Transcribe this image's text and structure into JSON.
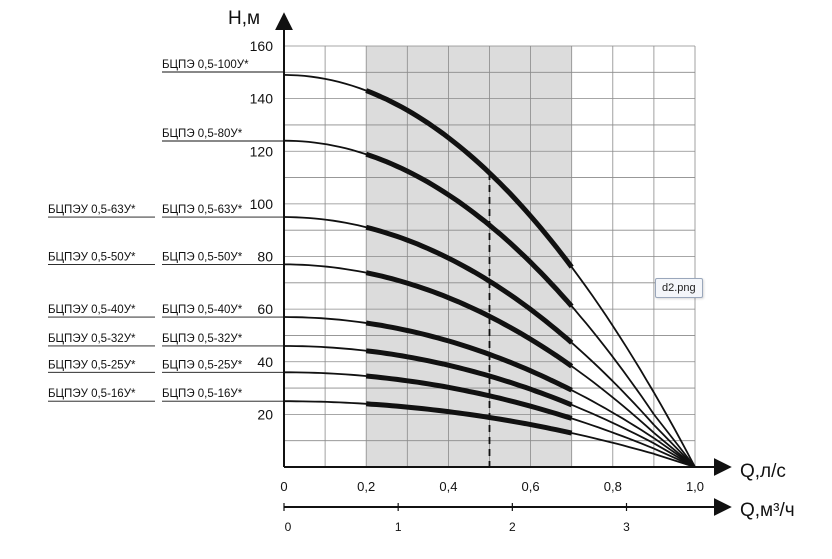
{
  "chart_data": {
    "type": "line",
    "y_axis_label": "Н,м",
    "x_axis_label": "Q,л/с",
    "x2_axis_label": "Q,м³/ч",
    "x_ticks": [
      "0",
      "0,2",
      "0,4",
      "0,6",
      "0,8",
      "1,0"
    ],
    "x2_ticks": [
      "0",
      "1",
      "2",
      "3"
    ],
    "y_ticks": [
      "20",
      "40",
      "60",
      "80",
      "100",
      "120",
      "140",
      "160"
    ],
    "xlim": [
      0,
      1.0
    ],
    "ylim": [
      0,
      160
    ],
    "x2_range_m3h": [
      0,
      3.6
    ],
    "grid": true,
    "working_zone": {
      "x_from": 0.2,
      "x_to": 0.7
    },
    "nominal_flow": 0.5,
    "series": [
      {
        "name": "БЦПЭ 0,5-100У*",
        "left_name": "",
        "shutoff_head": 149,
        "x_end": 1.0,
        "y_end": 0,
        "bold": [
          0.2,
          0.7
        ]
      },
      {
        "name": "БЦПЭ 0,5-80У*",
        "left_name": "",
        "shutoff_head": 124,
        "x_end": 0.9,
        "y_end": 20,
        "bold": [
          0.2,
          0.7
        ]
      },
      {
        "name": "БЦПЭ 0,5-63У*",
        "left_name": "БЦПЭУ 0,5-63У*",
        "shutoff_head": 95,
        "x_end": 0.9,
        "y_end": 16,
        "bold": [
          0.2,
          0.7
        ]
      },
      {
        "name": "БЦПЭ 0,5-50У*",
        "left_name": "БЦПЭУ 0,5-50У*",
        "shutoff_head": 77,
        "x_end": 0.9,
        "y_end": 13,
        "bold": [
          0.2,
          0.7
        ]
      },
      {
        "name": "БЦПЭ 0,5-40У*",
        "left_name": "БЦПЭУ 0,5-40У*",
        "shutoff_head": 57,
        "x_end": 0.9,
        "y_end": 11,
        "bold": [
          0.2,
          0.7
        ]
      },
      {
        "name": "БЦПЭ 0,5-32У*",
        "left_name": "БЦПЭУ 0,5-32У*",
        "shutoff_head": 46,
        "x_end": 0.9,
        "y_end": 9,
        "bold": [
          0.2,
          0.7
        ]
      },
      {
        "name": "БЦПЭ 0,5-25У*",
        "left_name": "БЦПЭУ 0,5-25У*",
        "shutoff_head": 36,
        "x_end": 0.9,
        "y_end": 7,
        "bold": [
          0.2,
          0.7
        ]
      },
      {
        "name": "БЦПЭ 0,5-16У*",
        "left_name": "БЦПЭУ 0,5-16У*",
        "shutoff_head": 25,
        "x_end": 0.9,
        "y_end": 5,
        "bold": [
          0.2,
          0.7
        ]
      }
    ],
    "image_tooltip": "d2.png"
  }
}
